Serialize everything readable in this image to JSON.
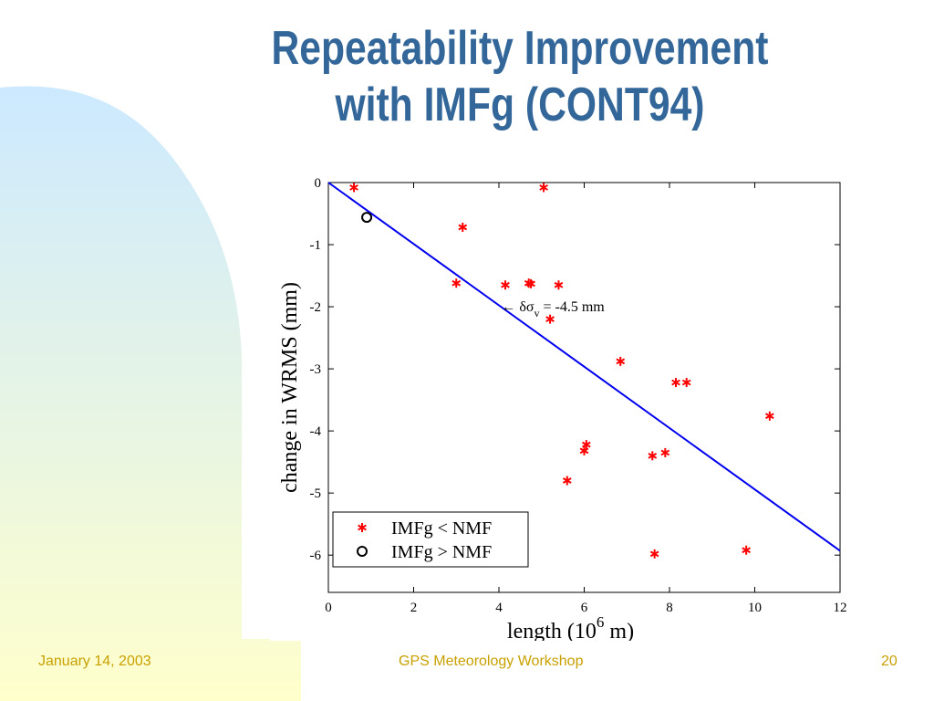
{
  "slide": {
    "title_line_1": "Repeatability Improvement",
    "title_line_2": "with IMFg (CONT94)",
    "footer_date": "January 14, 2003",
    "footer_event": "GPS Meteorology Workshop",
    "footer_page": "20"
  },
  "colors": {
    "title": "#336699",
    "footer": "#c8a000",
    "fit_line": "#0000ee",
    "star_marker": "#ff0000",
    "circle_marker": "#000000",
    "background_gradient_top": "#cce9ff",
    "background_gradient_bottom": "#ffffcc"
  },
  "chart_data": {
    "type": "scatter",
    "title": "",
    "xlabel_base": "length (10",
    "xlabel_exp": "6",
    "xlabel_tail": " m)",
    "ylabel": "change in WRMS (mm)",
    "xlim": [
      0,
      12
    ],
    "ylim": [
      -6.6,
      0
    ],
    "xticks": [
      "0",
      "2",
      "4",
      "6",
      "8",
      "10",
      "12"
    ],
    "yticks": [
      "0",
      "-1",
      "-2",
      "-3",
      "-4",
      "-5",
      "-6"
    ],
    "grid": false,
    "legend_position": "bottom-left",
    "legend": [
      {
        "marker": "star",
        "label": "IMFg < NMF"
      },
      {
        "marker": "circle",
        "label": "IMFg > NMF"
      }
    ],
    "series": [
      {
        "name": "IMFg < NMF",
        "marker": "star",
        "points": [
          [
            0.6,
            -0.08
          ],
          [
            3.15,
            -0.72
          ],
          [
            5.05,
            -0.08
          ],
          [
            3.0,
            -1.62
          ],
          [
            4.15,
            -1.65
          ],
          [
            4.7,
            -1.62
          ],
          [
            4.75,
            -1.63
          ],
          [
            5.4,
            -1.65
          ],
          [
            5.2,
            -2.2
          ],
          [
            6.85,
            -2.88
          ],
          [
            8.15,
            -3.22
          ],
          [
            8.4,
            -3.22
          ],
          [
            10.35,
            -3.76
          ],
          [
            6.05,
            -4.22
          ],
          [
            6.0,
            -4.32
          ],
          [
            7.6,
            -4.4
          ],
          [
            7.9,
            -4.35
          ],
          [
            5.6,
            -4.8
          ],
          [
            7.65,
            -5.98
          ],
          [
            9.8,
            -5.92
          ]
        ]
      },
      {
        "name": "IMFg > NMF",
        "marker": "circle",
        "points": [
          [
            0.9,
            -0.56
          ]
        ]
      }
    ],
    "fit_line": {
      "x": [
        0,
        12
      ],
      "y": [
        0,
        -5.93
      ]
    },
    "annotation": {
      "x": 4.05,
      "y": -2.0,
      "arrow": "←",
      "symbol": "δσ",
      "subscript": "v",
      "text": " = -4.5 mm"
    }
  }
}
